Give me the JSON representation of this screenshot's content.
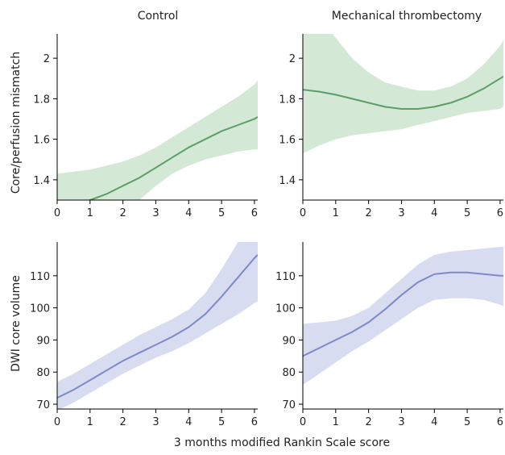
{
  "chart_data": [
    {
      "type": "line",
      "title": "Control",
      "xlabel": "",
      "ylabel": "Core/perfusion mismatch",
      "xlim": [
        0,
        6.1
      ],
      "ylim": [
        1.3,
        2.12
      ],
      "xticks": [
        0,
        1,
        2,
        3,
        4,
        5,
        6
      ],
      "yticks": [
        1.4,
        1.6,
        1.8,
        2
      ],
      "ytick_labels": [
        "1.4",
        "1.6",
        "1.8",
        "2"
      ],
      "x": [
        0,
        0.5,
        1,
        1.5,
        2,
        2.5,
        3,
        3.5,
        4,
        4.5,
        5,
        5.5,
        6,
        6.1
      ],
      "y": [
        1.25,
        1.27,
        1.3,
        1.33,
        1.37,
        1.41,
        1.46,
        1.51,
        1.56,
        1.6,
        1.64,
        1.67,
        1.7,
        1.71
      ],
      "lower": [
        1.05,
        1.08,
        1.12,
        1.18,
        1.24,
        1.3,
        1.37,
        1.43,
        1.47,
        1.5,
        1.52,
        1.54,
        1.55,
        1.55
      ],
      "upper": [
        1.43,
        1.44,
        1.45,
        1.47,
        1.49,
        1.52,
        1.56,
        1.61,
        1.66,
        1.71,
        1.76,
        1.81,
        1.87,
        1.89
      ],
      "color": "#5a9e68",
      "band_color": "#d4e8d6"
    },
    {
      "type": "line",
      "title": "Mechanical thrombectomy",
      "xlabel": "",
      "ylabel": "",
      "xlim": [
        0,
        6.1
      ],
      "ylim": [
        1.3,
        2.12
      ],
      "xticks": [
        0,
        1,
        2,
        3,
        4,
        5,
        6
      ],
      "yticks": [
        1.4,
        1.6,
        1.8,
        2
      ],
      "ytick_labels": [
        "1.4",
        "1.6",
        "1.8",
        "2"
      ],
      "x": [
        0,
        0.5,
        1,
        1.5,
        2,
        2.5,
        3,
        3.5,
        4,
        4.5,
        5,
        5.5,
        6,
        6.1
      ],
      "y": [
        1.845,
        1.835,
        1.82,
        1.8,
        1.78,
        1.76,
        1.75,
        1.75,
        1.76,
        1.78,
        1.81,
        1.85,
        1.9,
        1.91
      ],
      "lower": [
        1.53,
        1.57,
        1.6,
        1.62,
        1.63,
        1.64,
        1.65,
        1.67,
        1.69,
        1.71,
        1.73,
        1.74,
        1.75,
        1.76
      ],
      "upper": [
        2.3,
        2.2,
        2.1,
        2.0,
        1.93,
        1.88,
        1.86,
        1.84,
        1.84,
        1.86,
        1.9,
        1.97,
        2.06,
        2.09
      ],
      "color": "#5a9e68",
      "band_color": "#d4e8d6"
    },
    {
      "type": "line",
      "title": "",
      "xlabel": "",
      "ylabel": "DWI core volume",
      "xlim": [
        0,
        6.1
      ],
      "ylim": [
        68.5,
        120.5
      ],
      "xticks": [
        0,
        1,
        2,
        3,
        4,
        5,
        6
      ],
      "yticks": [
        70,
        80,
        90,
        100,
        110
      ],
      "ytick_labels": [
        "70",
        "80",
        "90",
        "100",
        "110"
      ],
      "x": [
        0,
        0.5,
        1,
        1.5,
        2,
        2.5,
        3,
        3.5,
        4,
        4.5,
        5,
        5.5,
        6,
        6.1
      ],
      "y": [
        72,
        74.5,
        77.5,
        80.5,
        83.5,
        86,
        88.5,
        91,
        94,
        98,
        103.5,
        109.5,
        115.5,
        116.5
      ],
      "lower": [
        68,
        70.5,
        73.5,
        76.5,
        79.5,
        82,
        84.5,
        86.5,
        89,
        92,
        95,
        98,
        101.5,
        102
      ],
      "upper": [
        77,
        79.5,
        82.5,
        85.5,
        88.5,
        91.5,
        94,
        96.5,
        99.5,
        104.5,
        112,
        120.5,
        128,
        130
      ],
      "color": "#7f89c8",
      "band_color": "#d7dcf0"
    },
    {
      "type": "line",
      "title": "",
      "xlabel": "",
      "ylabel": "",
      "xlim": [
        0,
        6.1
      ],
      "ylim": [
        68.5,
        120.5
      ],
      "xticks": [
        0,
        1,
        2,
        3,
        4,
        5,
        6
      ],
      "yticks": [
        70,
        80,
        90,
        100,
        110
      ],
      "ytick_labels": [
        "70",
        "80",
        "90",
        "100",
        "110"
      ],
      "x": [
        0,
        0.5,
        1,
        1.5,
        2,
        2.5,
        3,
        3.5,
        4,
        4.5,
        5,
        5.5,
        6,
        6.1
      ],
      "y": [
        85,
        87.5,
        90,
        92.5,
        95.5,
        99.5,
        104,
        108,
        110.5,
        111,
        111,
        110.5,
        110,
        110
      ],
      "lower": [
        76,
        79.5,
        83,
        86.5,
        89.5,
        93,
        96.5,
        100,
        102.5,
        103,
        103,
        102.5,
        101,
        100.5
      ],
      "upper": [
        95,
        95.5,
        96,
        97.5,
        100,
        104.5,
        109,
        113.5,
        116.5,
        117.5,
        118,
        118.5,
        119,
        119
      ],
      "color": "#7f89c8",
      "band_color": "#d7dcf0"
    }
  ],
  "shared_xlabel": "3 months modified Rankin Scale score"
}
